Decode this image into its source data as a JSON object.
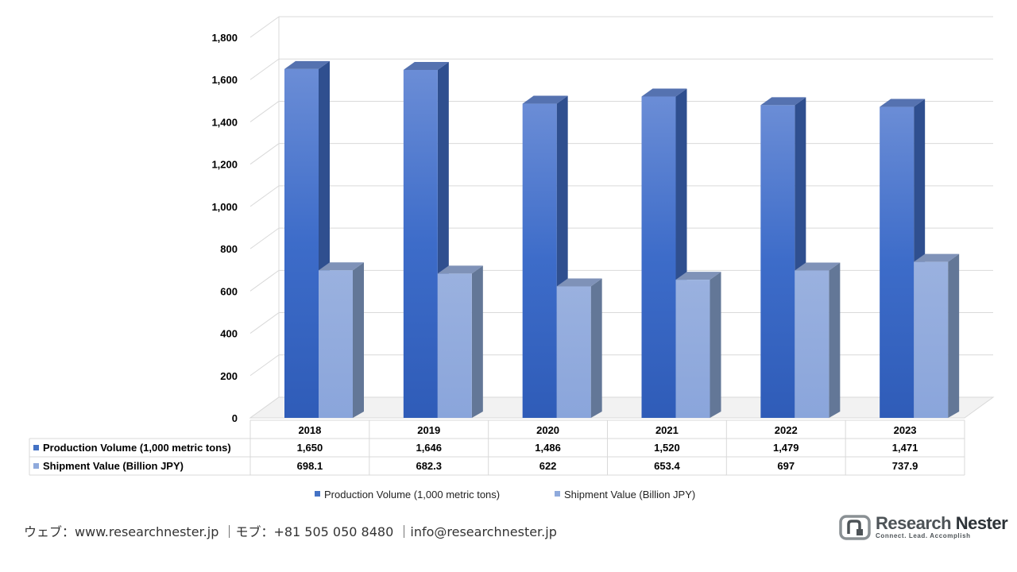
{
  "chart_data": {
    "type": "bar",
    "title": "",
    "xlabel": "",
    "ylabel": "",
    "ylim": [
      0,
      1800
    ],
    "yticks": [
      "0",
      "200",
      "400",
      "600",
      "800",
      "1,000",
      "1,200",
      "1,400",
      "1,600",
      "1,800"
    ],
    "ytick_values": [
      0,
      200,
      400,
      600,
      800,
      1000,
      1200,
      1400,
      1600,
      1800
    ],
    "grid": true,
    "legend_position": "bottom",
    "categories": [
      "2018",
      "2019",
      "2020",
      "2021",
      "2022",
      "2023"
    ],
    "series": [
      {
        "name": "Production Volume (1,000 metric tons)",
        "values": [
          1650,
          1646,
          1486,
          1520,
          1479,
          1471
        ],
        "labels": [
          "1,650",
          "1,646",
          "1,486",
          "1,520",
          "1,479",
          "1,471"
        ],
        "color": "#4472c4"
      },
      {
        "name": "Shipment Value (Billion JPY)",
        "values": [
          698.1,
          682.3,
          622,
          653.4,
          697,
          737.9
        ],
        "labels": [
          "698.1",
          "682.3",
          "622",
          "653.4",
          "697",
          "737.9"
        ],
        "color": "#8faadc"
      }
    ]
  },
  "footer": {
    "web_label": "ウェブ：",
    "web_url": "www.researchnester.jp",
    "phone_label": "｜モブ：",
    "phone": "+81 505 050 8480",
    "separator": "｜",
    "email": "info@researchnester.jp"
  },
  "logo": {
    "name_part1": "Research",
    "name_part2": "Nester",
    "tagline": "Connect. Lead. Accomplish"
  }
}
